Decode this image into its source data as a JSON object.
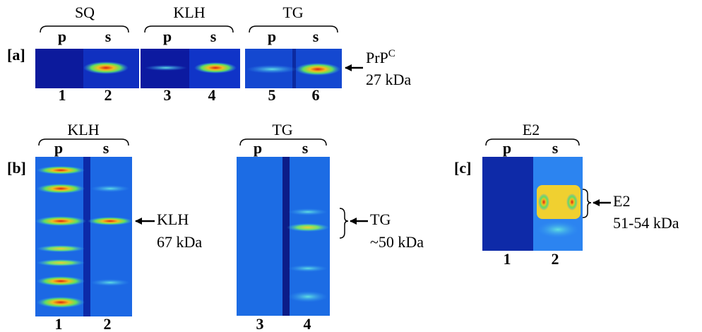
{
  "panels": [
    {
      "label": "[a]",
      "groups": [
        {
          "title": "SQ",
          "lanes": [
            {
              "name": "p",
              "number": "1"
            },
            {
              "name": "s",
              "number": "2"
            }
          ]
        },
        {
          "title": "KLH",
          "lanes": [
            {
              "name": "p",
              "number": "3"
            },
            {
              "name": "s",
              "number": "4"
            }
          ]
        },
        {
          "title": "TG",
          "lanes": [
            {
              "name": "p",
              "number": "5"
            },
            {
              "name": "s",
              "number": "6"
            }
          ]
        }
      ],
      "annotations": [
        {
          "text": "PrP",
          "superscript": "C",
          "size": "27 kDa"
        }
      ]
    },
    {
      "label": "[b]",
      "groups": [
        {
          "title": "KLH",
          "lanes": [
            {
              "name": "p",
              "number": "1"
            },
            {
              "name": "s",
              "number": "2"
            }
          ]
        },
        {
          "title": "TG",
          "lanes": [
            {
              "name": "p",
              "number": "3"
            },
            {
              "name": "s",
              "number": "4"
            }
          ]
        }
      ],
      "annotations": [
        {
          "text": "KLH",
          "size": "67 kDa"
        },
        {
          "text": "TG",
          "size": "~50 kDa"
        }
      ]
    },
    {
      "label": "[c]",
      "groups": [
        {
          "title": "E2",
          "lanes": [
            {
              "name": "p",
              "number": "1"
            },
            {
              "name": "s",
              "number": "2"
            }
          ]
        }
      ],
      "annotations": [
        {
          "text": "E2",
          "size": "51-54 kDa"
        }
      ]
    }
  ]
}
